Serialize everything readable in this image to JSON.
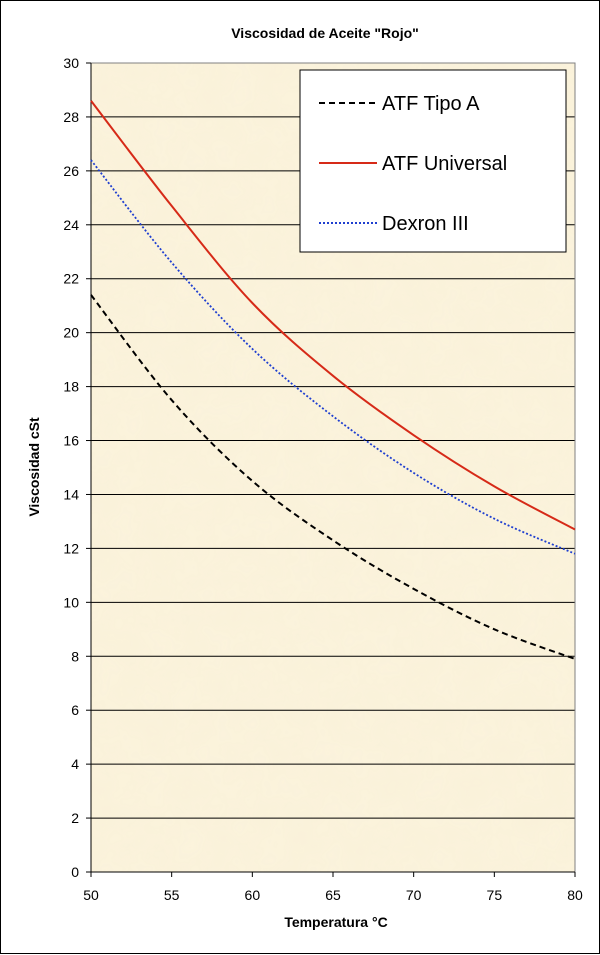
{
  "chart_data": {
    "type": "line",
    "title": "Viscosidad de Aceite \"Rojo\"",
    "xlabel": "Temperatura °C",
    "ylabel": "Viscosidad cSt",
    "xlim": [
      50,
      80
    ],
    "ylim": [
      0,
      30
    ],
    "x_ticks": [
      50,
      55,
      60,
      65,
      70,
      75,
      80
    ],
    "y_ticks": [
      0,
      2,
      4,
      6,
      8,
      10,
      12,
      14,
      16,
      18,
      20,
      22,
      24,
      26,
      28,
      30
    ],
    "grid": "horizontal",
    "legend_position": "top-right",
    "plot_background": "#fbf3dc",
    "series": [
      {
        "name": "ATF Tipo A",
        "color": "#000000",
        "line_style": "dashed",
        "x": [
          50,
          55,
          60,
          65,
          70,
          75,
          80
        ],
        "y": [
          21.4,
          17.5,
          14.5,
          12.3,
          10.5,
          9.0,
          7.9
        ]
      },
      {
        "name": "ATF Universal",
        "color": "#d62a18",
        "line_style": "solid",
        "x": [
          50,
          55,
          60,
          65,
          70,
          75,
          80
        ],
        "y": [
          28.6,
          24.7,
          21.1,
          18.4,
          16.2,
          14.3,
          12.7
        ]
      },
      {
        "name": "Dexron III",
        "color": "#1f3fd0",
        "line_style": "dotted",
        "x": [
          50,
          55,
          60,
          65,
          70,
          75,
          80
        ],
        "y": [
          26.4,
          22.6,
          19.4,
          16.9,
          14.8,
          13.1,
          11.8
        ]
      }
    ]
  }
}
